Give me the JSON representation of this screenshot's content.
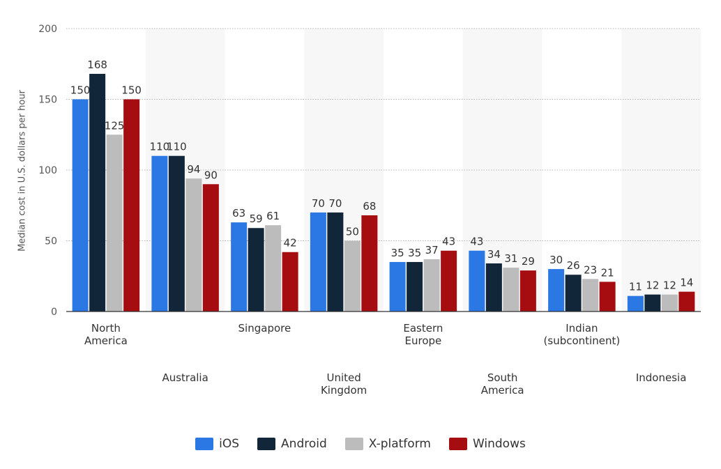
{
  "chart_data": {
    "type": "bar",
    "categories": [
      "North America",
      "Australia",
      "Singapore",
      "United Kingdom",
      "Eastern Europe",
      "South America",
      "Indian (subcontinent)",
      "Indonesia"
    ],
    "category_label_lines": [
      [
        "North",
        "America"
      ],
      [
        "Australia"
      ],
      [
        "Singapore"
      ],
      [
        "United",
        "Kingdom"
      ],
      [
        "Eastern",
        "Europe"
      ],
      [
        "South",
        "America"
      ],
      [
        "Indian",
        "(subcontinent)"
      ],
      [
        "Indonesia"
      ]
    ],
    "series": [
      {
        "name": "iOS",
        "color": "#2b78e4",
        "values": [
          150,
          110,
          63,
          70,
          35,
          43,
          30,
          11
        ]
      },
      {
        "name": "Android",
        "color": "#12263a",
        "values": [
          168,
          110,
          59,
          70,
          35,
          34,
          26,
          12
        ]
      },
      {
        "name": "X-platform",
        "color": "#bcbcbc",
        "values": [
          125,
          94,
          61,
          50,
          37,
          31,
          23,
          12
        ]
      },
      {
        "name": "Windows",
        "color": "#a50d10",
        "values": [
          150,
          90,
          42,
          68,
          43,
          29,
          21,
          14
        ]
      }
    ],
    "ylabel": "Median cost in U.S. dollars per hour",
    "xlabel": "",
    "ylim": [
      0,
      200
    ],
    "yticks": [
      0,
      50,
      100,
      150,
      200
    ],
    "grid": true,
    "legend_position": "bottom",
    "data_labels": true
  }
}
